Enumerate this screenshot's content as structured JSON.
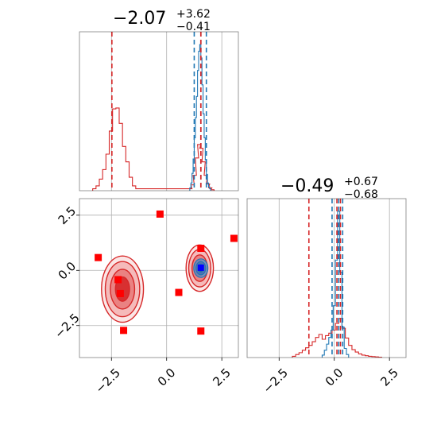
{
  "chart_data": {
    "type": "corner",
    "colors": {
      "series_a": "#d62728",
      "series_b": "#1f77b4",
      "marker": "#ff0000",
      "true_point": "#0000ff",
      "grid": "#b0b0b0"
    },
    "titles": [
      {
        "base": "−2.07",
        "sup": "+3.62",
        "sub": "−0.41"
      },
      {
        "base": "−0.49",
        "sup": "+0.67",
        "sub": "−0.68"
      }
    ],
    "axes": {
      "x_range": [
        -3.95,
        3.25
      ],
      "y_range": [
        -3.95,
        3.25
      ],
      "ticks": [
        -2.5,
        0.0,
        2.5
      ],
      "tick_labels": [
        "−2.5",
        "0.0",
        "2.5"
      ],
      "grid": true
    },
    "hist_x": {
      "series_red": {
        "bins": [
          -3.35,
          -3.2,
          -3.05,
          -2.9,
          -2.75,
          -2.6,
          -2.45,
          -2.3,
          -2.15,
          -2.0,
          -1.85,
          -1.7,
          -1.55,
          -1.4,
          1.0,
          1.1,
          1.2,
          1.3,
          1.4,
          1.5,
          1.6,
          1.7,
          1.8,
          1.9,
          2.0
        ],
        "values": [
          0.02,
          0.05,
          0.12,
          0.22,
          0.38,
          0.62,
          0.85,
          0.86,
          0.7,
          0.46,
          0.3,
          0.14,
          0.05,
          0.02,
          0.02,
          0.06,
          0.16,
          0.34,
          0.48,
          0.44,
          0.3,
          0.16,
          0.07,
          0.03,
          0.01
        ]
      },
      "series_blue": {
        "bins": [
          1.05,
          1.1,
          1.15,
          1.2,
          1.25,
          1.3,
          1.35,
          1.4,
          1.45,
          1.5,
          1.55,
          1.6,
          1.65,
          1.7,
          1.75,
          1.8,
          1.85,
          1.9,
          1.95
        ],
        "values": [
          0.03,
          0.08,
          0.18,
          0.33,
          0.55,
          0.76,
          0.98,
          1.25,
          1.45,
          1.52,
          1.38,
          1.1,
          0.8,
          0.55,
          0.32,
          0.17,
          0.08,
          0.04,
          0.02
        ]
      },
      "quantiles_red": [
        -2.48,
        1.55,
        1.55
      ],
      "quantiles_blue": [
        1.25,
        1.55,
        1.8
      ]
    },
    "hist_y": {
      "series_red": {
        "bins": [
          -1.9,
          -1.75,
          -1.6,
          -1.45,
          -1.3,
          -1.15,
          -1.0,
          -0.85,
          -0.7,
          -0.55,
          -0.4,
          -0.25,
          -0.1,
          0.05,
          0.2,
          0.35,
          0.5,
          0.65,
          0.8,
          0.95,
          1.1,
          1.25,
          1.4,
          1.55,
          1.7,
          1.85,
          2.0
        ],
        "values": [
          0.02,
          0.05,
          0.08,
          0.12,
          0.16,
          0.2,
          0.26,
          0.33,
          0.38,
          0.3,
          0.36,
          0.4,
          0.45,
          0.56,
          0.64,
          0.48,
          0.32,
          0.2,
          0.13,
          0.09,
          0.06,
          0.04,
          0.03,
          0.02,
          0.015,
          0.01,
          0.005
        ]
      },
      "series_blue": {
        "bins": [
          -0.55,
          -0.45,
          -0.35,
          -0.25,
          -0.15,
          -0.05,
          0.05,
          0.15,
          0.25,
          0.35,
          0.45,
          0.55
        ],
        "values": [
          0.04,
          0.12,
          0.22,
          0.33,
          0.45,
          0.85,
          1.6,
          2.4,
          1.4,
          0.5,
          0.15,
          0.05
        ]
      },
      "quantiles_red": [
        -1.15,
        0.12,
        0.28
      ],
      "quantiles_blue": [
        -0.1,
        0.2,
        0.38
      ]
    },
    "scatter": {
      "red_squares": [
        [
          -0.3,
          2.55
        ],
        [
          3.05,
          1.45
        ],
        [
          -3.1,
          0.58
        ],
        [
          1.55,
          1.0
        ],
        [
          -2.2,
          -0.42
        ],
        [
          -2.1,
          -1.05
        ],
        [
          0.55,
          -1.0
        ],
        [
          -1.95,
          -2.72
        ],
        [
          1.55,
          -2.75
        ]
      ],
      "blue_square": [
        1.55,
        0.12
      ],
      "contours_red": [
        {
          "center": [
            -2.0,
            -0.85
          ],
          "rx": [
            0.95,
            0.78,
            0.55,
            0.32
          ],
          "ry": [
            1.5,
            1.25,
            0.9,
            0.55
          ]
        },
        {
          "center": [
            1.5,
            0.1
          ],
          "rx": [
            0.62,
            0.5,
            0.35,
            0.2
          ],
          "ry": [
            1.05,
            0.85,
            0.6,
            0.35
          ]
        }
      ],
      "contours_blue": {
        "center": [
          1.55,
          0.1
        ],
        "rx": [
          0.32,
          0.22,
          0.12
        ],
        "ry": [
          0.42,
          0.3,
          0.18
        ]
      }
    }
  }
}
